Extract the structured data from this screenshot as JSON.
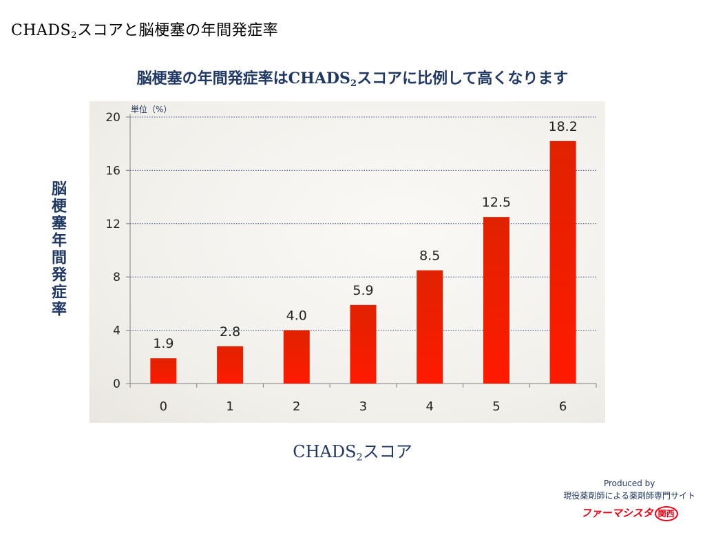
{
  "slide": {
    "title": "CHADS",
    "title_sub": "2",
    "title_rest": "スコアと脳梗塞の年間発症率"
  },
  "chart_data": {
    "type": "bar",
    "title": "脳梗塞の年間発症率はCHADS",
    "title_sub": "2",
    "title_rest": "スコアに比例して高くなります",
    "xlabel": "CHADS",
    "xlabel_sub": "2",
    "xlabel_rest": "スコア",
    "ylabel": "脳梗塞年間発症率",
    "unit_note": "単位（%）",
    "categories": [
      "0",
      "1",
      "2",
      "3",
      "4",
      "5",
      "6"
    ],
    "values": [
      1.9,
      2.8,
      4.0,
      5.9,
      8.5,
      12.5,
      18.2
    ],
    "value_labels": [
      "1.9",
      "2.8",
      "4.0",
      "5.9",
      "8.5",
      "12.5",
      "18.2"
    ],
    "yticks": [
      0,
      4,
      8,
      12,
      16,
      20
    ],
    "ylim": [
      0,
      20
    ],
    "grid": true,
    "gridline_style": "dotted",
    "legend": "none",
    "bar_color_top": "#e02200",
    "bar_color_bottom": "#ff1a00",
    "grid_color": "#2e4a8a",
    "text_color": "#1f3864"
  },
  "credit": {
    "produced_by": "Produced by",
    "tagline": "現役薬剤師による薬剤師専門サイト",
    "logo_text": "ファーマシスタ",
    "logo_badge": "関西"
  }
}
